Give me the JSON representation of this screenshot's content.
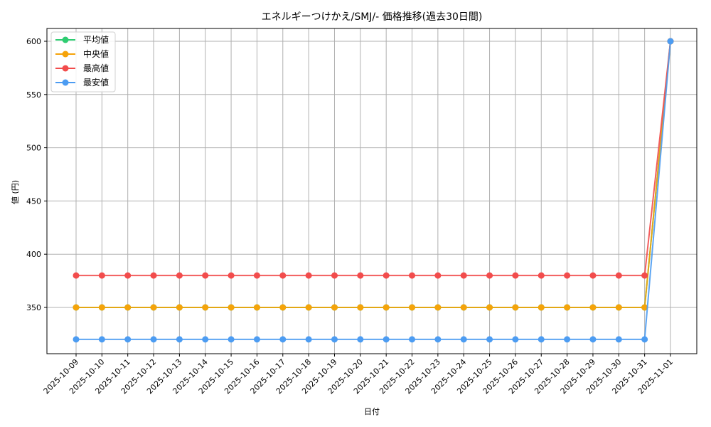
{
  "chart_data": {
    "type": "line",
    "title": "エネルギーつけかえ/SMJ/- 価格推移(過去30日間)",
    "xlabel": "日付",
    "ylabel": "値 (円)",
    "ylim": [
      306,
      614
    ],
    "yticks": [
      350,
      400,
      450,
      500,
      550,
      600
    ],
    "grid": true,
    "legend_position": "upper left",
    "categories": [
      "2025-10-09",
      "2025-10-10",
      "2025-10-11",
      "2025-10-12",
      "2025-10-13",
      "2025-10-14",
      "2025-10-15",
      "2025-10-16",
      "2025-10-17",
      "2025-10-18",
      "2025-10-19",
      "2025-10-20",
      "2025-10-21",
      "2025-10-22",
      "2025-10-23",
      "2025-10-24",
      "2025-10-25",
      "2025-10-26",
      "2025-10-27",
      "2025-10-28",
      "2025-10-29",
      "2025-10-30",
      "2025-10-31",
      "2025-11-01"
    ],
    "series": [
      {
        "name": "平均値",
        "color": "#2ecc71",
        "values": [
          350,
          350,
          350,
          350,
          350,
          350,
          350,
          350,
          350,
          350,
          350,
          350,
          350,
          350,
          350,
          350,
          350,
          350,
          350,
          350,
          350,
          350,
          350,
          600
        ]
      },
      {
        "name": "中央値",
        "color": "#f5a30a",
        "values": [
          350,
          350,
          350,
          350,
          350,
          350,
          350,
          350,
          350,
          350,
          350,
          350,
          350,
          350,
          350,
          350,
          350,
          350,
          350,
          350,
          350,
          350,
          350,
          600
        ]
      },
      {
        "name": "最高値",
        "color": "#f24c4c",
        "values": [
          380,
          380,
          380,
          380,
          380,
          380,
          380,
          380,
          380,
          380,
          380,
          380,
          380,
          380,
          380,
          380,
          380,
          380,
          380,
          380,
          380,
          380,
          380,
          600
        ]
      },
      {
        "name": "最安値",
        "color": "#4c9cf2",
        "values": [
          320,
          320,
          320,
          320,
          320,
          320,
          320,
          320,
          320,
          320,
          320,
          320,
          320,
          320,
          320,
          320,
          320,
          320,
          320,
          320,
          320,
          320,
          320,
          600
        ]
      }
    ]
  }
}
